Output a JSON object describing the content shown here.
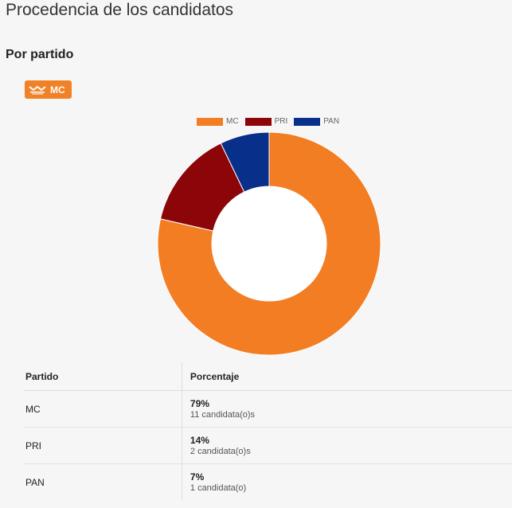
{
  "page": {
    "title": "Procedencia de los candidatos",
    "section": "Por partido"
  },
  "badge": {
    "label": "MC",
    "color": "#f08126"
  },
  "chart_data": {
    "type": "pie",
    "variant": "donut",
    "legend_position": "top",
    "categories": [
      "MC",
      "PRI",
      "PAN"
    ],
    "values": [
      11,
      2,
      1
    ],
    "colors": [
      "#f37d23",
      "#8c0509",
      "#08308a"
    ]
  },
  "table": {
    "headers": [
      "Partido",
      "Porcentaje"
    ],
    "rows": [
      {
        "party": "MC",
        "pct": "79%",
        "count": "11 candidata(o)s"
      },
      {
        "party": "PRI",
        "pct": "14%",
        "count": "2 candidata(o)s"
      },
      {
        "party": "PAN",
        "pct": "7%",
        "count": "1 candidata(o)"
      }
    ]
  }
}
